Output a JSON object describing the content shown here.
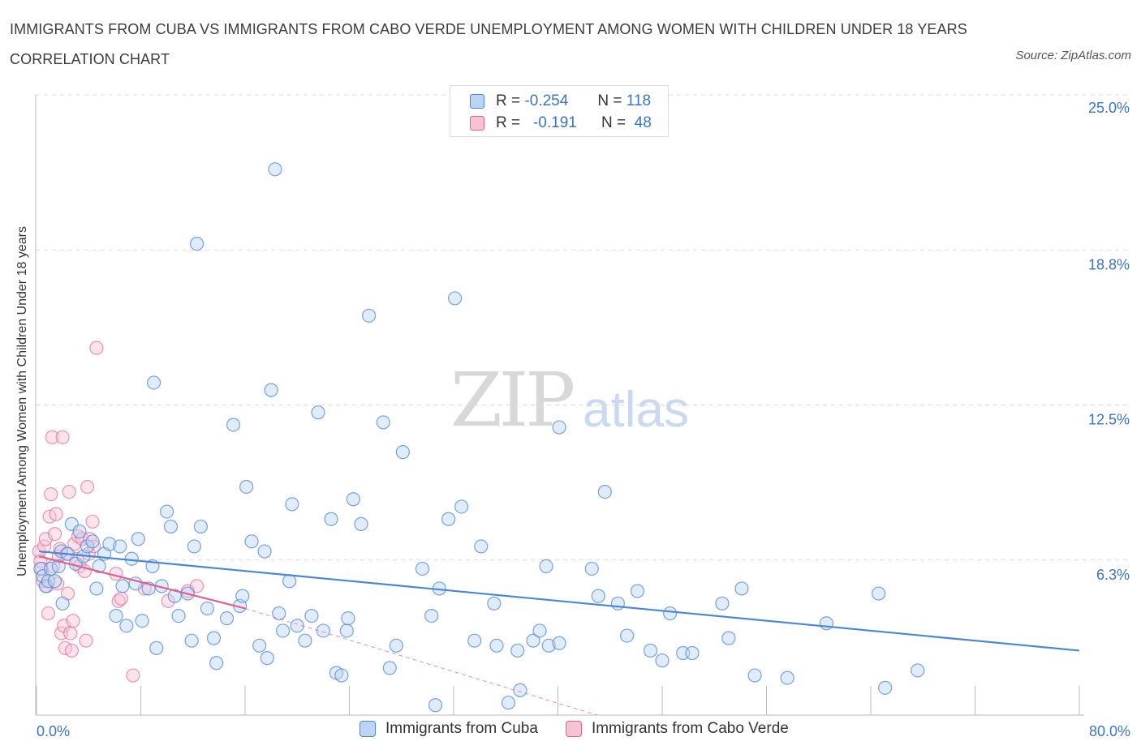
{
  "title": "IMMIGRANTS FROM CUBA VS IMMIGRANTS FROM CABO VERDE UNEMPLOYMENT AMONG WOMEN WITH CHILDREN UNDER 18 YEARS CORRELATION CHART",
  "source": "Source: ZipAtlas.com",
  "watermark": {
    "zip": "ZIP",
    "atlas": "atlas"
  },
  "legend": {
    "r_label": "R =",
    "n_label": "N =",
    "cuba": {
      "r": "-0.254",
      "n": "118"
    },
    "cabo": {
      "r": "-0.191",
      "n": "48"
    }
  },
  "bottom_legend": {
    "cuba": "Immigrants from Cuba",
    "cabo": "Immigrants from Cabo Verde"
  },
  "colors": {
    "cuba": "#4a86d8",
    "cuba_fill": "#bcd4f5",
    "cabo": "#e0608e",
    "cabo_fill": "#f7c3d4",
    "tick": "#3a74c8"
  },
  "chart_data": {
    "type": "scatter",
    "ylabel": "Unemployment Among Women with Children Under 18 years",
    "xlim": [
      0,
      80
    ],
    "ylim": [
      0,
      25
    ],
    "x_tick_labels": [
      "0.0%",
      "80.0%"
    ],
    "y_ticks": [
      {
        "v": 6.25,
        "label": "6.3%"
      },
      {
        "v": 12.5,
        "label": "12.5%"
      },
      {
        "v": 18.75,
        "label": "18.8%"
      },
      {
        "v": 25,
        "label": "25.0%"
      }
    ],
    "grid": "horizontal dashed",
    "series": [
      {
        "name": "Immigrants from Cuba",
        "trend": [
          [
            0.2,
            6.6
          ],
          [
            80,
            2.6
          ]
        ],
        "points": [
          [
            0.3,
            5.9
          ],
          [
            0.5,
            5.6
          ],
          [
            0.7,
            5.2
          ],
          [
            0.9,
            5.4
          ],
          [
            1.1,
            5.9
          ],
          [
            1.4,
            5.4
          ],
          [
            1.7,
            6.0
          ],
          [
            1.9,
            6.6
          ],
          [
            2.0,
            4.5
          ],
          [
            2.4,
            6.5
          ],
          [
            2.7,
            7.7
          ],
          [
            3.0,
            6.1
          ],
          [
            3.3,
            7.4
          ],
          [
            3.6,
            6.4
          ],
          [
            3.9,
            6.8
          ],
          [
            4.3,
            7.0
          ],
          [
            4.6,
            5.1
          ],
          [
            4.8,
            6.0
          ],
          [
            5.2,
            6.5
          ],
          [
            5.6,
            6.9
          ],
          [
            6.1,
            4.0
          ],
          [
            6.4,
            6.8
          ],
          [
            6.6,
            5.2
          ],
          [
            6.9,
            3.6
          ],
          [
            7.3,
            6.3
          ],
          [
            7.6,
            5.3
          ],
          [
            7.8,
            7.1
          ],
          [
            8.1,
            3.8
          ],
          [
            8.6,
            5.1
          ],
          [
            8.9,
            6.0
          ],
          [
            9.0,
            13.4
          ],
          [
            9.2,
            2.7
          ],
          [
            9.6,
            5.2
          ],
          [
            10.0,
            8.2
          ],
          [
            10.3,
            7.6
          ],
          [
            10.6,
            4.8
          ],
          [
            10.9,
            4.0
          ],
          [
            11.6,
            4.9
          ],
          [
            11.9,
            3.0
          ],
          [
            12.1,
            6.8
          ],
          [
            12.3,
            19.0
          ],
          [
            12.6,
            7.6
          ],
          [
            13.1,
            4.3
          ],
          [
            13.6,
            3.1
          ],
          [
            13.8,
            2.1
          ],
          [
            14.6,
            3.9
          ],
          [
            15.1,
            11.7
          ],
          [
            15.6,
            4.4
          ],
          [
            15.8,
            4.8
          ],
          [
            16.1,
            9.2
          ],
          [
            16.5,
            7.0
          ],
          [
            17.1,
            2.8
          ],
          [
            17.5,
            6.6
          ],
          [
            17.7,
            2.3
          ],
          [
            18.0,
            13.1
          ],
          [
            18.3,
            22.0
          ],
          [
            18.6,
            4.1
          ],
          [
            18.9,
            3.4
          ],
          [
            19.4,
            5.4
          ],
          [
            19.6,
            8.5
          ],
          [
            20.0,
            3.6
          ],
          [
            20.6,
            3.0
          ],
          [
            21.1,
            4.0
          ],
          [
            21.6,
            12.2
          ],
          [
            22.0,
            3.4
          ],
          [
            22.6,
            7.9
          ],
          [
            23.0,
            1.7
          ],
          [
            23.4,
            1.6
          ],
          [
            23.8,
            3.4
          ],
          [
            23.9,
            3.9
          ],
          [
            24.3,
            8.7
          ],
          [
            24.9,
            7.7
          ],
          [
            25.5,
            16.1
          ],
          [
            26.6,
            11.8
          ],
          [
            27.1,
            1.9
          ],
          [
            27.6,
            2.8
          ],
          [
            28.1,
            10.6
          ],
          [
            29.6,
            5.9
          ],
          [
            30.3,
            4.0
          ],
          [
            30.6,
            0.4
          ],
          [
            30.9,
            5.1
          ],
          [
            31.6,
            7.9
          ],
          [
            32.1,
            16.8
          ],
          [
            32.6,
            8.4
          ],
          [
            33.6,
            3.0
          ],
          [
            34.1,
            6.8
          ],
          [
            35.1,
            4.5
          ],
          [
            35.3,
            2.8
          ],
          [
            36.2,
            0.5
          ],
          [
            36.9,
            2.6
          ],
          [
            37.1,
            1.0
          ],
          [
            38.1,
            3.0
          ],
          [
            38.6,
            3.4
          ],
          [
            39.1,
            6.0
          ],
          [
            39.3,
            2.8
          ],
          [
            40.1,
            2.9
          ],
          [
            40.1,
            11.6
          ],
          [
            42.6,
            5.9
          ],
          [
            43.1,
            4.8
          ],
          [
            43.6,
            9.0
          ],
          [
            44.6,
            4.5
          ],
          [
            45.3,
            3.2
          ],
          [
            46.1,
            5.0
          ],
          [
            47.1,
            2.6
          ],
          [
            48.0,
            2.2
          ],
          [
            48.6,
            4.1
          ],
          [
            49.6,
            2.5
          ],
          [
            50.3,
            2.5
          ],
          [
            52.6,
            4.5
          ],
          [
            53.1,
            3.1
          ],
          [
            54.1,
            5.1
          ],
          [
            55.1,
            1.6
          ],
          [
            57.6,
            1.5
          ],
          [
            60.6,
            3.7
          ],
          [
            64.6,
            4.9
          ],
          [
            65.1,
            1.1
          ],
          [
            67.6,
            1.8
          ]
        ]
      },
      {
        "name": "Immigrants from Cabo Verde",
        "trend": [
          [
            0.2,
            6.4
          ],
          [
            16,
            4.3
          ]
        ],
        "trend_ext": [
          [
            16,
            4.3
          ],
          [
            43,
            0.0
          ]
        ],
        "points": [
          [
            0.2,
            6.6
          ],
          [
            0.3,
            6.2
          ],
          [
            0.4,
            5.9
          ],
          [
            0.5,
            5.4
          ],
          [
            0.6,
            6.8
          ],
          [
            0.7,
            7.1
          ],
          [
            0.8,
            5.2
          ],
          [
            0.9,
            4.1
          ],
          [
            1.0,
            8.0
          ],
          [
            1.1,
            8.9
          ],
          [
            1.2,
            11.2
          ],
          [
            1.3,
            6.0
          ],
          [
            1.4,
            7.3
          ],
          [
            1.5,
            8.1
          ],
          [
            1.6,
            5.3
          ],
          [
            1.7,
            6.4
          ],
          [
            1.8,
            6.7
          ],
          [
            1.9,
            3.3
          ],
          [
            2.0,
            11.2
          ],
          [
            2.1,
            3.6
          ],
          [
            2.2,
            2.7
          ],
          [
            2.3,
            6.5
          ],
          [
            2.4,
            4.9
          ],
          [
            2.5,
            9.0
          ],
          [
            2.6,
            3.3
          ],
          [
            2.7,
            2.6
          ],
          [
            2.8,
            3.8
          ],
          [
            2.9,
            6.9
          ],
          [
            3.1,
            6.3
          ],
          [
            3.2,
            7.2
          ],
          [
            3.3,
            6.0
          ],
          [
            3.5,
            7.1
          ],
          [
            3.7,
            5.8
          ],
          [
            3.8,
            3.0
          ],
          [
            3.9,
            9.2
          ],
          [
            4.0,
            6.5
          ],
          [
            4.1,
            7.1
          ],
          [
            4.3,
            7.8
          ],
          [
            4.4,
            6.8
          ],
          [
            4.6,
            14.8
          ],
          [
            6.1,
            5.7
          ],
          [
            6.3,
            4.6
          ],
          [
            6.5,
            4.7
          ],
          [
            7.4,
            1.6
          ],
          [
            8.3,
            5.1
          ],
          [
            10.1,
            4.6
          ],
          [
            11.6,
            5.0
          ],
          [
            12.3,
            5.2
          ]
        ]
      }
    ]
  }
}
